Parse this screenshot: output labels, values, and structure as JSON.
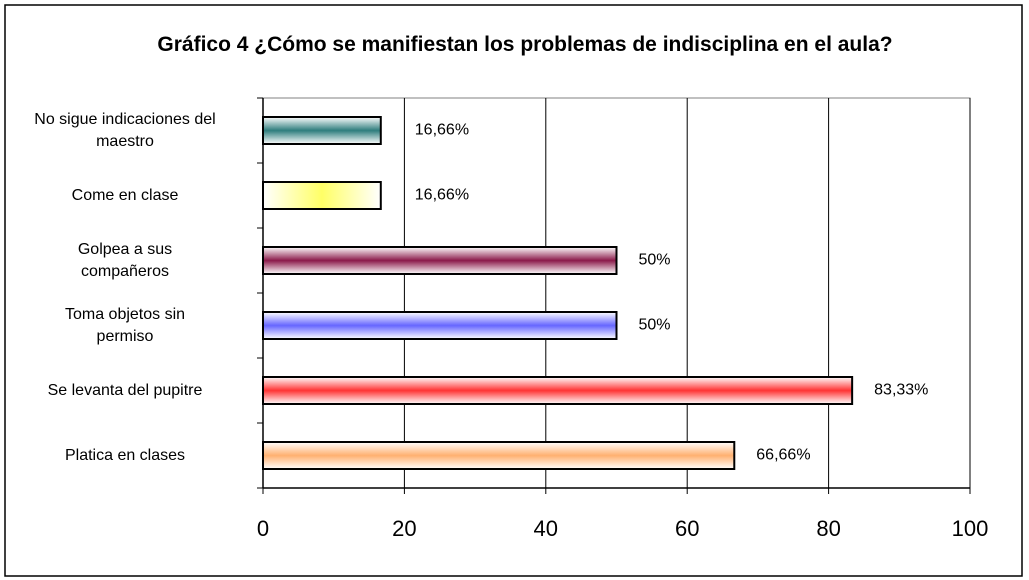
{
  "chart_data": {
    "type": "bar",
    "orientation": "horizontal",
    "title": "Gráfico 4 ¿Cómo se manifiestan los problemas de indisciplina en el aula?",
    "categories": [
      "No sigue indicaciones del\nmaestro",
      "Come en clase",
      "Golpea a sus\ncompañeros",
      "Toma objetos sin\npermiso",
      "Se levanta del pupitre",
      "Platica en clases"
    ],
    "values": [
      16.66,
      16.66,
      50,
      50,
      83.33,
      66.66
    ],
    "value_labels": [
      "16,66%",
      "16,66%",
      "50%",
      "50%",
      "83,33%",
      "66,66%"
    ],
    "colors": [
      "#2e7d7d",
      "#ffff66",
      "#8b1a4a",
      "#6666ff",
      "#ff3333",
      "#ffb070"
    ],
    "xlim": [
      0,
      100
    ],
    "xticks": [
      0,
      20,
      40,
      60,
      80,
      100
    ],
    "grid": true
  }
}
